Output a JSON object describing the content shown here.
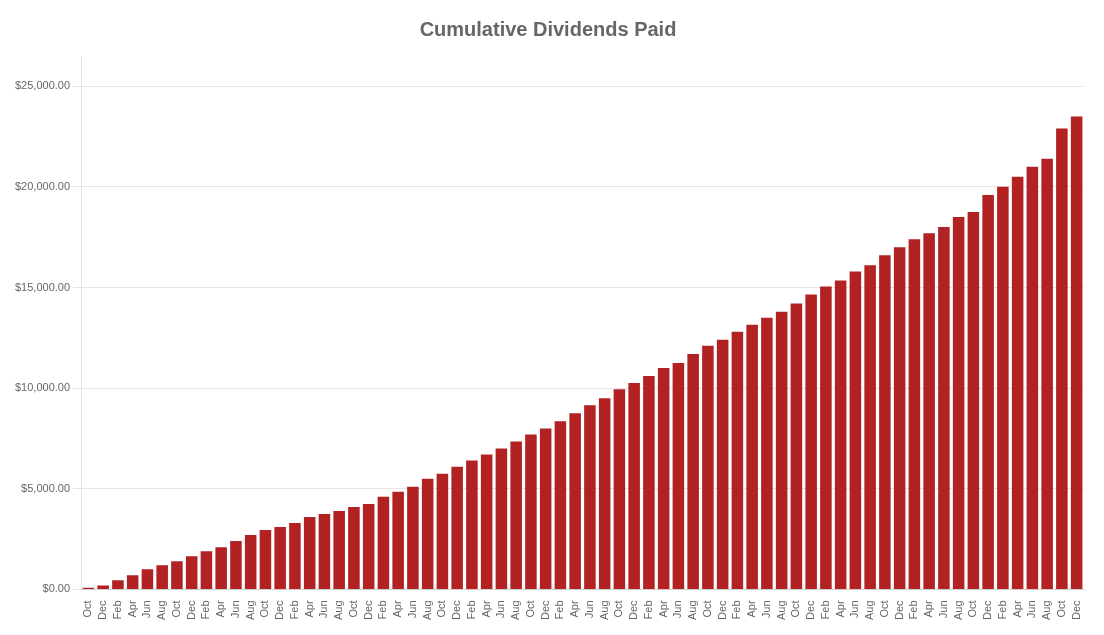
{
  "chart_data": {
    "type": "bar",
    "title": "Cumulative Dividends Paid",
    "categories": [
      "Oct",
      "Dec",
      "Feb",
      "Apr",
      "Jun",
      "Aug",
      "Oct",
      "Dec",
      "Feb",
      "Apr",
      "Jun",
      "Aug",
      "Oct",
      "Dec",
      "Feb",
      "Apr",
      "Jun",
      "Aug",
      "Oct",
      "Dec",
      "Feb",
      "Apr",
      "Jun",
      "Aug",
      "Oct",
      "Dec",
      "Feb",
      "Apr",
      "Jun",
      "Aug",
      "Oct",
      "Dec",
      "Feb",
      "Apr",
      "Jun",
      "Aug",
      "Oct",
      "Dec",
      "Feb",
      "Apr",
      "Jun",
      "Aug",
      "Oct",
      "Dec",
      "Feb",
      "Apr",
      "Jun",
      "Aug",
      "Oct",
      "Dec",
      "Feb",
      "Apr",
      "Jun",
      "Aug",
      "Oct",
      "Dec",
      "Feb",
      "Apr",
      "Jun",
      "Aug",
      "Oct",
      "Dec",
      "Feb",
      "Apr",
      "Jun",
      "Aug",
      "Oct",
      "Dec"
    ],
    "values": [
      80,
      200,
      450,
      700,
      1000,
      1200,
      1400,
      1650,
      1900,
      2100,
      2400,
      2700,
      2950,
      3100,
      3300,
      3600,
      3750,
      3900,
      4100,
      4250,
      4600,
      4850,
      5100,
      5500,
      5750,
      6100,
      6400,
      6700,
      7000,
      7350,
      7700,
      8000,
      8350,
      8750,
      9150,
      9500,
      9950,
      10250,
      10600,
      11000,
      11250,
      11700,
      12100,
      12400,
      12800,
      13150,
      13500,
      13800,
      14200,
      14650,
      15050,
      15350,
      15800,
      16100,
      16600,
      17000,
      17400,
      17700,
      18000,
      18500,
      18750,
      19600,
      20000,
      20500,
      21000,
      21400,
      22900,
      23500
    ],
    "color": "#B22222",
    "ylim": [
      0,
      26500
    ],
    "yticks": [
      {
        "value": 0,
        "label": "$0.00"
      },
      {
        "value": 5000,
        "label": "$5,000.00"
      },
      {
        "value": 10000,
        "label": "$10,000.00"
      },
      {
        "value": 15000,
        "label": "$15,000.00"
      },
      {
        "value": 20000,
        "label": "$20,000.00"
      },
      {
        "value": 25000,
        "label": "$25,000.00"
      }
    ],
    "grid": true
  }
}
